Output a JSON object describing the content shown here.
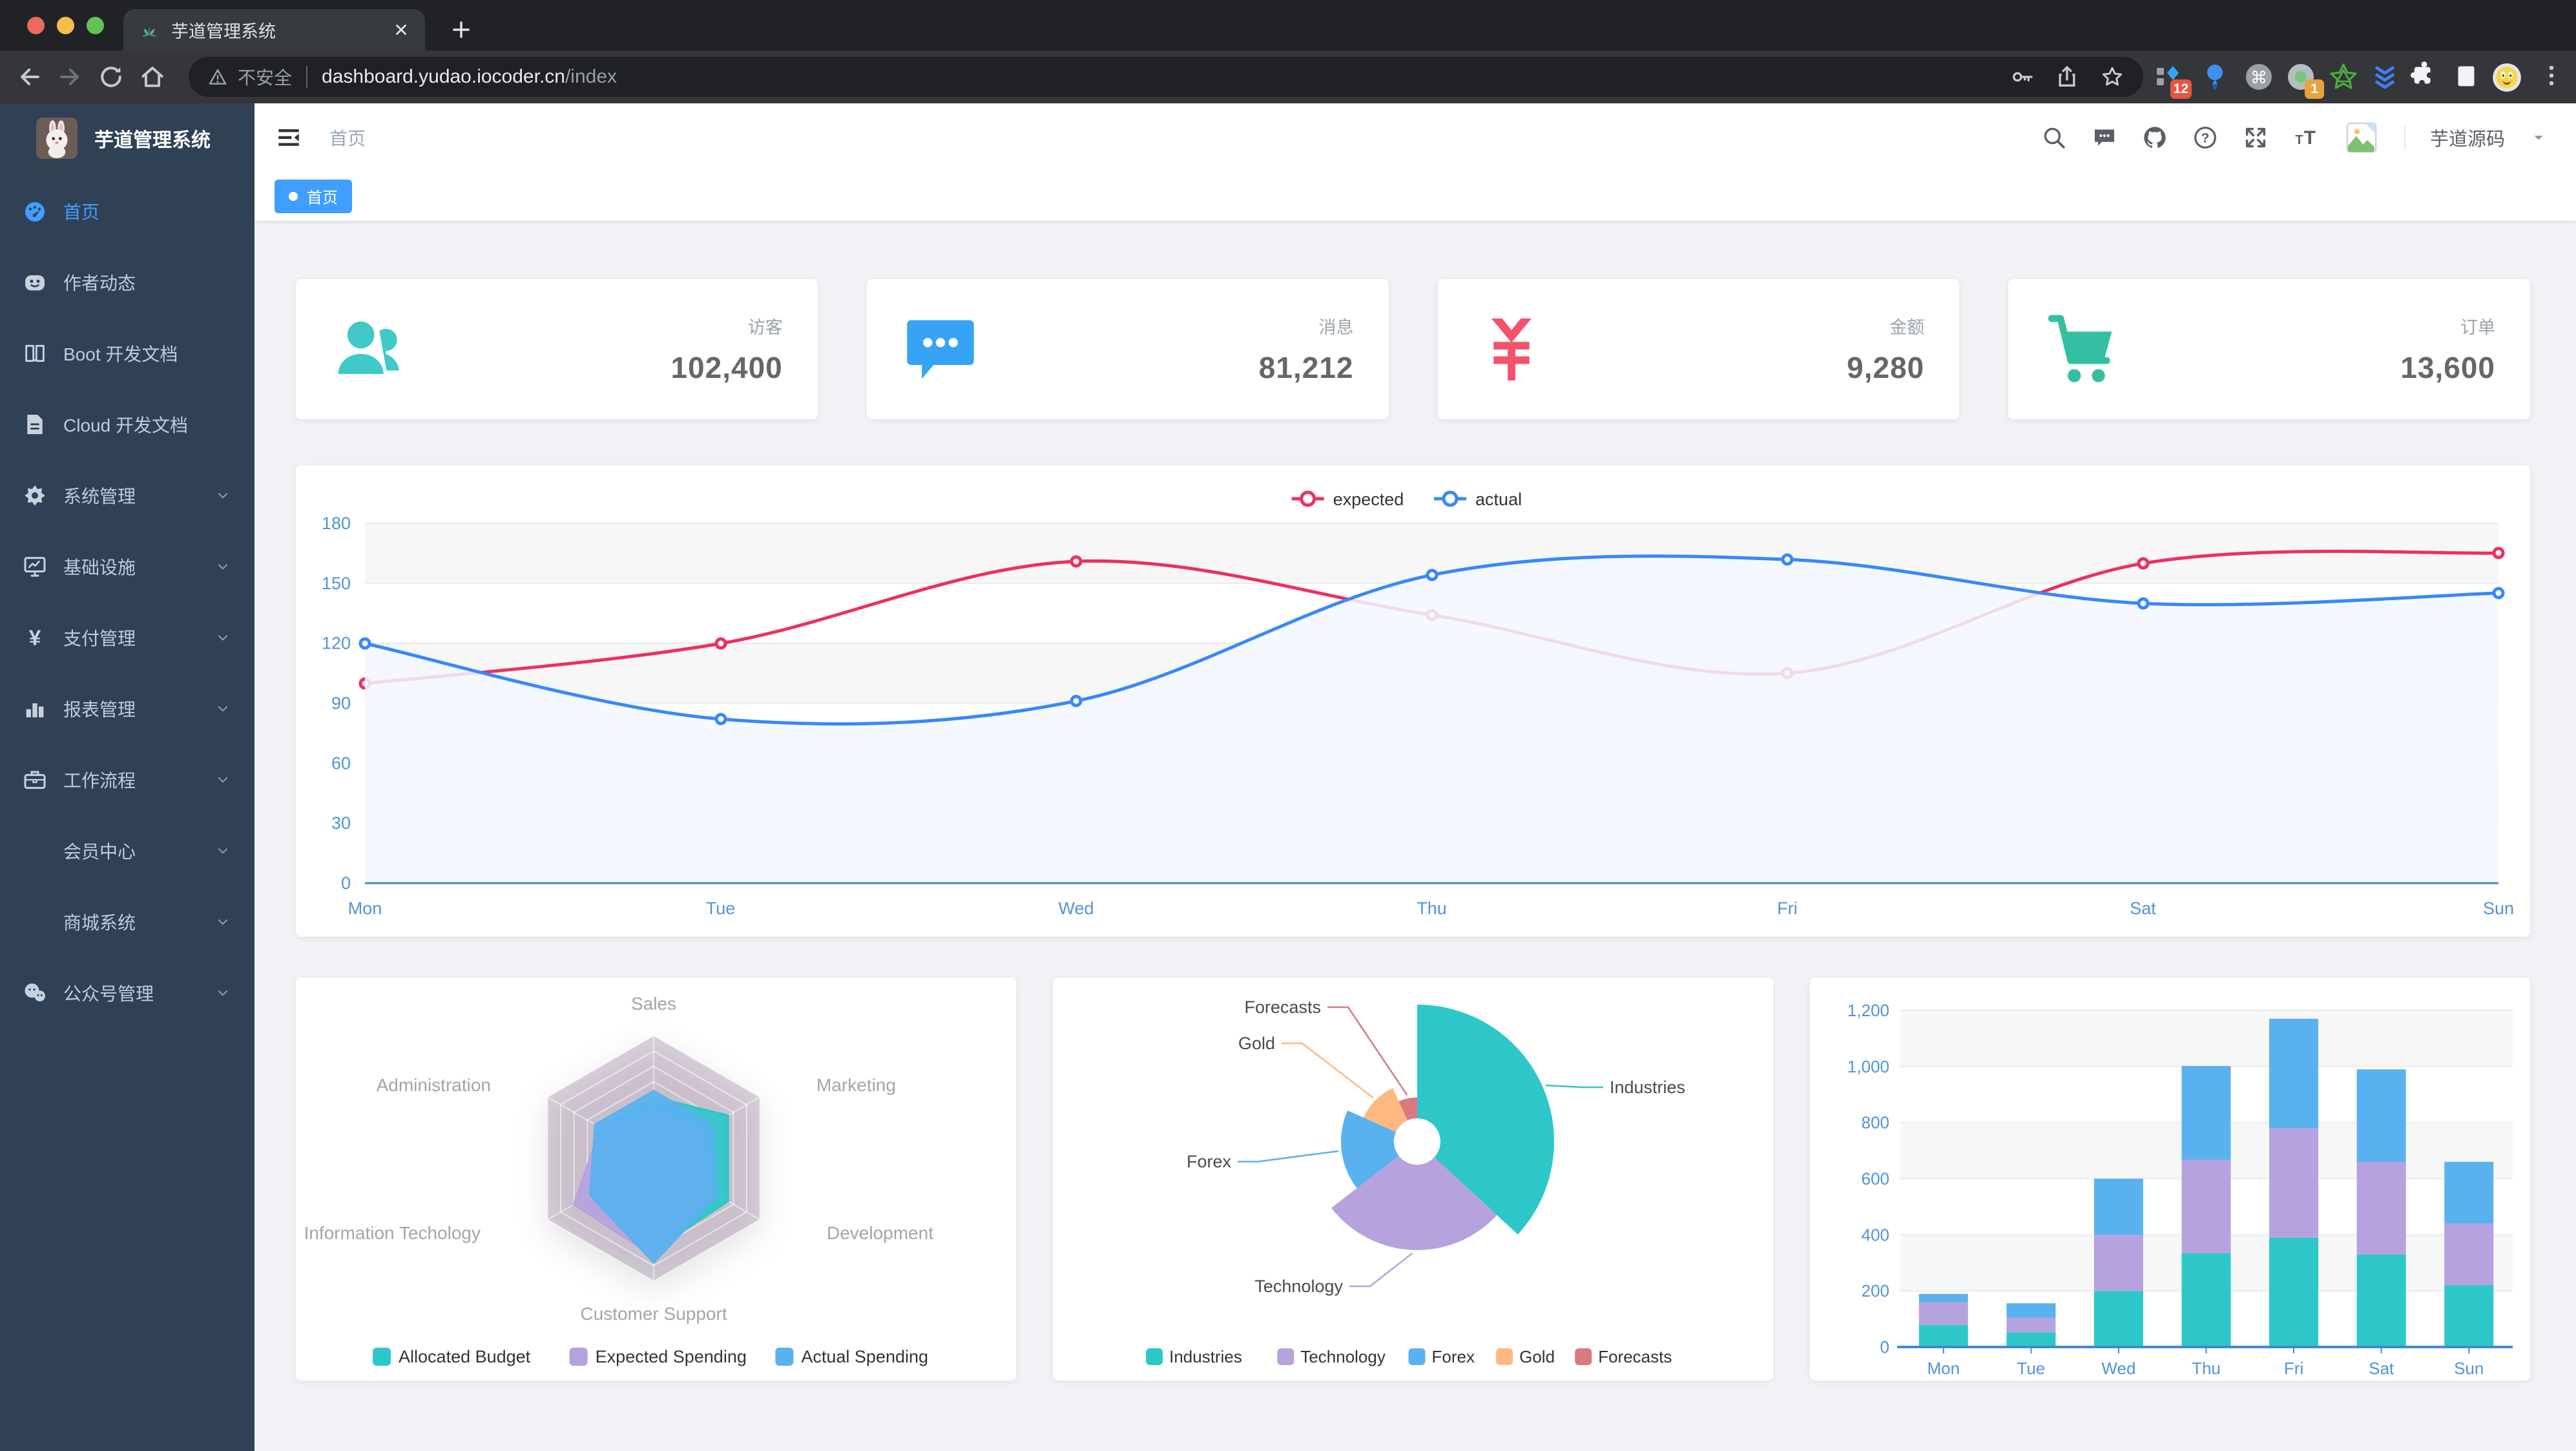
{
  "browser": {
    "tab": {
      "title": "芋道管理系统"
    },
    "url": {
      "security_label": "不安全",
      "host": "dashboard.yudao.iocoder.cn",
      "path": "/index"
    },
    "extensions": {
      "badge1": "12",
      "badge2": "1"
    }
  },
  "sidebar": {
    "logo_title": "芋道管理系统",
    "items": [
      {
        "label": "首页",
        "icon": "dashboard-icon",
        "active": true,
        "expandable": false
      },
      {
        "label": "作者动态",
        "icon": "author-icon",
        "active": false,
        "expandable": false
      },
      {
        "label": "Boot 开发文档",
        "icon": "book-icon",
        "active": false,
        "expandable": false
      },
      {
        "label": "Cloud 开发文档",
        "icon": "document-icon",
        "active": false,
        "expandable": false
      },
      {
        "label": "系统管理",
        "icon": "gear-icon",
        "active": false,
        "expandable": true
      },
      {
        "label": "基础设施",
        "icon": "monitor-icon",
        "active": false,
        "expandable": true
      },
      {
        "label": "支付管理",
        "icon": "yen-icon",
        "active": false,
        "expandable": true
      },
      {
        "label": "报表管理",
        "icon": "barchart-icon",
        "active": false,
        "expandable": true
      },
      {
        "label": "工作流程",
        "icon": "briefcase-icon",
        "active": false,
        "expandable": true
      },
      {
        "label": "会员中心",
        "icon": null,
        "active": false,
        "expandable": true
      },
      {
        "label": "商城系统",
        "icon": null,
        "active": false,
        "expandable": true
      },
      {
        "label": "公众号管理",
        "icon": "wechat-icon",
        "active": false,
        "expandable": true
      }
    ]
  },
  "navbar": {
    "breadcrumb": "首页",
    "username": "芋道源码"
  },
  "tags": [
    {
      "label": "首页",
      "active": true
    }
  ],
  "stat_cards": [
    {
      "label": "访客",
      "value": "102,400",
      "icon": "peoples-icon",
      "color": "#40c9c6"
    },
    {
      "label": "消息",
      "value": "81,212",
      "icon": "messages-icon",
      "color": "#36a3f4"
    },
    {
      "label": "金额",
      "value": "9,280",
      "icon": "money-icon",
      "color": "#f4516c"
    },
    {
      "label": "订单",
      "value": "13,600",
      "icon": "shopping-icon",
      "color": "#34bfa3"
    }
  ],
  "chart_data": [
    {
      "id": "weekly-line",
      "type": "line",
      "x": [
        "Mon",
        "Tue",
        "Wed",
        "Thu",
        "Fri",
        "Sat",
        "Sun"
      ],
      "series": [
        {
          "name": "expected",
          "color": "#ee2f60",
          "values": [
            100,
            120,
            161,
            134,
            105,
            160,
            165
          ]
        },
        {
          "name": "actual",
          "color": "#3888fa",
          "area_color": "#f3f8ff",
          "values": [
            120,
            82,
            91,
            154,
            162,
            140,
            145
          ]
        }
      ],
      "ylim": [
        0,
        180
      ],
      "ytick_step": 30,
      "legend_position": "top",
      "grid": true,
      "axis_label_color": "#4f94d8",
      "axis_line_color": "#418ad2"
    },
    {
      "id": "budget-radar",
      "type": "radar",
      "indicators": [
        {
          "name": "Sales",
          "max": 10000
        },
        {
          "name": "Marketing",
          "max": 20000
        },
        {
          "name": "Development",
          "max": 20000
        },
        {
          "name": "Customer Support",
          "max": 20000
        },
        {
          "name": "Information Techology",
          "max": 20000
        },
        {
          "name": "Administration",
          "max": 20000
        }
      ],
      "series": [
        {
          "name": "Allocated Budget",
          "color": "#2ec7c9",
          "values": [
            5000,
            14000,
            14000,
            15000,
            11000,
            10000
          ]
        },
        {
          "name": "Expected Spending",
          "color": "#b6a2de",
          "values": [
            4000,
            9000,
            11000,
            16000,
            15000,
            10000
          ]
        },
        {
          "name": "Actual Spending",
          "color": "#5ab1ef",
          "values": [
            5500,
            11000,
            12000,
            17000,
            12000,
            11000
          ]
        }
      ],
      "legend_position": "bottom",
      "web_color": "rgba(127,95,132,0.28)"
    },
    {
      "id": "category-pie",
      "type": "pie",
      "rose": true,
      "items": [
        {
          "name": "Industries",
          "value": 320,
          "color": "#2ec7c9"
        },
        {
          "name": "Technology",
          "value": 240,
          "color": "#b6a2de"
        },
        {
          "name": "Forex",
          "value": 149,
          "color": "#5ab1ef"
        },
        {
          "name": "Gold",
          "value": 100,
          "color": "#ffb980"
        },
        {
          "name": "Forecasts",
          "value": 59,
          "color": "#d87a80"
        }
      ],
      "legend_position": "bottom"
    },
    {
      "id": "weekly-bar",
      "type": "bar",
      "stacked": true,
      "categories": [
        "Mon",
        "Tue",
        "Wed",
        "Thu",
        "Fri",
        "Sat",
        "Sun"
      ],
      "series": [
        {
          "color": "#2ec7c9",
          "values": [
            79,
            52,
            200,
            334,
            390,
            330,
            220
          ]
        },
        {
          "color": "#b6a2de",
          "values": [
            80,
            52,
            200,
            334,
            390,
            330,
            220
          ]
        },
        {
          "color": "#5ab1ef",
          "values": [
            30,
            52,
            200,
            334,
            390,
            330,
            220
          ]
        }
      ],
      "ylim": [
        0,
        1200
      ],
      "ytick_step": 200,
      "axis_label_color": "#4f94d8",
      "axis_line_color": "#418ad2"
    }
  ]
}
